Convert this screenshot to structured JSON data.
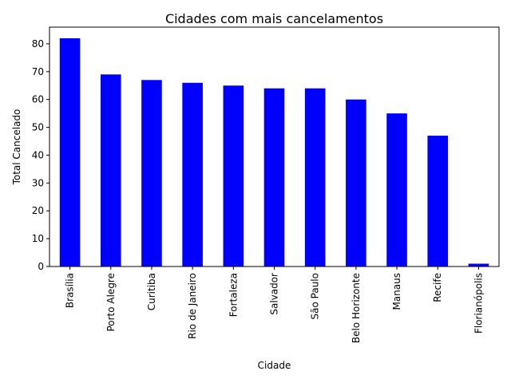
{
  "chart_data": {
    "type": "bar",
    "title": "Cidades com mais cancelamentos",
    "xlabel": "Cidade",
    "ylabel": "Total Cancelado",
    "categories": [
      "Brasília",
      "Porto Alegre",
      "Curitiba",
      "Rio de Janeiro",
      "Fortaleza",
      "Salvador",
      "São Paulo",
      "Belo Horizonte",
      "Manaus",
      "Recife",
      "Florianópolis"
    ],
    "values": [
      82,
      69,
      67,
      66,
      65,
      64,
      64,
      60,
      55,
      47,
      1
    ],
    "ylim": [
      0,
      86
    ],
    "yticks": [
      0,
      10,
      20,
      30,
      40,
      50,
      60,
      70,
      80
    ],
    "bar_color": "#0000ff",
    "grid": false,
    "legend": false
  }
}
